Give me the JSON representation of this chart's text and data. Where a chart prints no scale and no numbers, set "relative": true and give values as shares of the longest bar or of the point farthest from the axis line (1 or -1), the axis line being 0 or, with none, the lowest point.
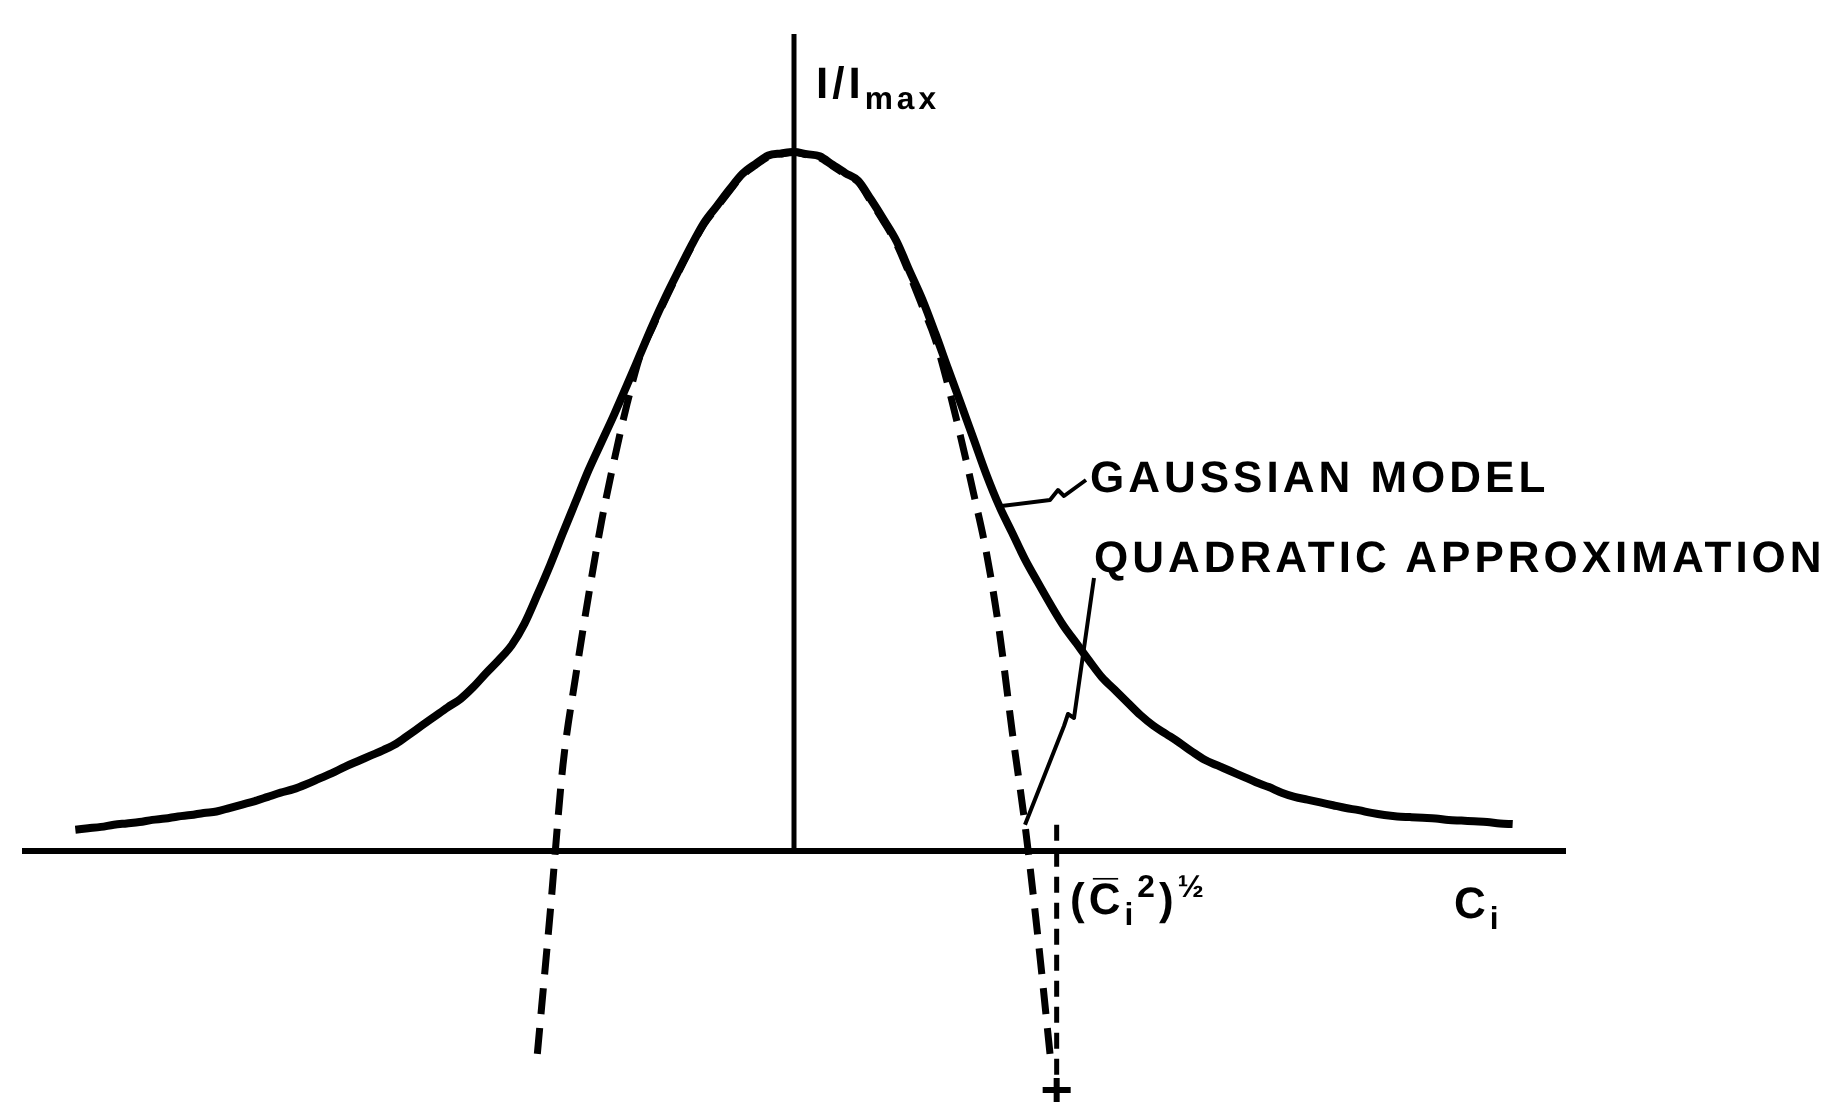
{
  "chart_data": {
    "type": "line",
    "relative": true,
    "marker": "none",
    "xlabel": "C$_{i}$",
    "ylabel": "I/I$_{max}$",
    "annotations": [
      "(C̅$_{i}$$^{2}$)$^{½}$"
    ],
    "categories": [
      null,
      null,
      null,
      null,
      null,
      null,
      null,
      null,
      null,
      null,
      null,
      null,
      null,
      null,
      null,
      null,
      null,
      null,
      null,
      null,
      null,
      null,
      null,
      null,
      null,
      null,
      null,
      null,
      null,
      null,
      null,
      null,
      null,
      null,
      null,
      null,
      null,
      null,
      null,
      null,
      null,
      null,
      null,
      null,
      null,
      null,
      null,
      null,
      null,
      null,
      null,
      null,
      null,
      null,
      null,
      null,
      null,
      null,
      null,
      null,
      null,
      null,
      null,
      null,
      null,
      null,
      null,
      null,
      null,
      null,
      null,
      null,
      null,
      null,
      null,
      null,
      null,
      null,
      null,
      null,
      null,
      null,
      null,
      null,
      null,
      null,
      null,
      null,
      null,
      null,
      null,
      null,
      null,
      null,
      null,
      null,
      null,
      null,
      null,
      null,
      null,
      null,
      null,
      null,
      null,
      null,
      null,
      null,
      null,
      null,
      null,
      null,
      null,
      null,
      null,
      null,
      null,
      null,
      null,
      null,
      null
    ],
    "series": [
      {
        "name": "GAUSSIAN MODEL",
        "color": "#000000",
        "line_style": "solid",
        "values": [
          null,
          null,
          null,
          null,
          0.03,
          0.032,
          0.034,
          0.037,
          0.039,
          0.041,
          0.044,
          0.046,
          0.049,
          0.051,
          0.054,
          0.056,
          0.061,
          0.066,
          0.071,
          0.077,
          0.083,
          0.088,
          0.095,
          0.103,
          0.111,
          0.12,
          0.128,
          0.136,
          0.144,
          0.153,
          0.166,
          0.179,
          0.192,
          0.205,
          0.217,
          0.234,
          0.254,
          0.273,
          0.294,
          0.325,
          0.366,
          0.409,
          0.455,
          0.5,
          0.545,
          0.585,
          0.625,
          0.667,
          0.71,
          0.753,
          0.793,
          0.83,
          0.866,
          0.899,
          0.923,
          0.947,
          0.969,
          0.983,
          0.995,
          0.998,
          1.0,
          0.997,
          0.994,
          0.982,
          0.97,
          0.959,
          0.932,
          0.903,
          0.872,
          0.83,
          0.789,
          0.741,
          0.69,
          0.64,
          0.589,
          0.538,
          0.493,
          0.455,
          0.417,
          0.384,
          0.352,
          0.322,
          0.297,
          0.272,
          0.248,
          0.23,
          0.212,
          0.194,
          0.179,
          0.167,
          0.155,
          0.142,
          0.13,
          0.122,
          0.114,
          0.106,
          0.098,
          0.091,
          0.083,
          0.077,
          0.073,
          0.069,
          0.065,
          0.061,
          0.058,
          0.054,
          0.051,
          0.049,
          0.048,
          0.047,
          0.046,
          0.044,
          0.043,
          0.042,
          0.041,
          0.039,
          0.038,
          null,
          null,
          null,
          null
        ]
      },
      {
        "name": "QUADRATIC APPROXIMATION",
        "color": "#000000",
        "line_style": "dashed",
        "values": [
          null,
          null,
          null,
          null,
          null,
          null,
          null,
          null,
          null,
          null,
          null,
          null,
          null,
          null,
          null,
          null,
          null,
          null,
          null,
          null,
          null,
          null,
          null,
          null,
          null,
          null,
          null,
          null,
          null,
          null,
          null,
          null,
          null,
          null,
          null,
          null,
          null,
          null,
          null,
          null,
          -0.291,
          -0.089,
          0.123,
          0.251,
          0.366,
          0.471,
          0.56,
          0.64,
          0.708,
          0.75,
          0.79,
          0.828,
          0.864,
          0.897,
          0.921,
          0.945,
          0.967,
          0.981,
          0.993,
          0.997,
          1.0,
          0.996,
          0.992,
          0.98,
          0.968,
          0.957,
          0.929,
          0.9,
          0.868,
          0.825,
          0.779,
          0.732,
          0.666,
          0.591,
          0.511,
          0.426,
          0.314,
          0.171,
          0.037,
          -0.123,
          -0.3,
          null,
          null,
          null,
          null,
          null,
          null,
          null,
          null,
          null,
          null,
          null,
          null,
          null,
          null,
          null,
          null,
          null,
          null,
          null,
          null,
          null,
          null,
          null,
          null,
          null,
          null,
          null,
          null,
          null,
          null,
          null,
          null,
          null,
          null,
          null,
          null,
          null,
          null,
          null,
          null
        ]
      }
    ]
  }
}
